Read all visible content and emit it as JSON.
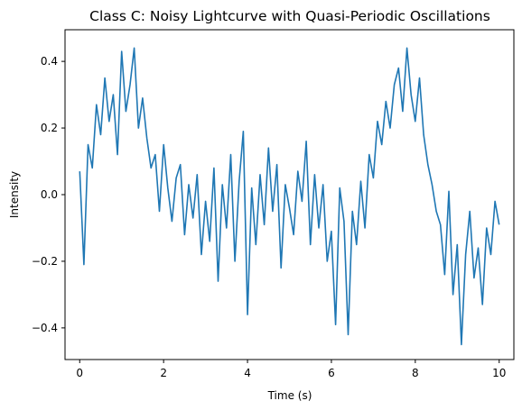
{
  "chart_data": {
    "type": "line",
    "title": "Class C: Noisy Lightcurve with Quasi-Periodic Oscillations",
    "xlabel": "Time (s)",
    "ylabel": "Intensity",
    "xlim": [
      -0.35,
      10.35
    ],
    "ylim": [
      -0.495,
      0.495
    ],
    "x_ticks": [
      0,
      2,
      4,
      6,
      8,
      10
    ],
    "x_tick_labels": [
      "0",
      "2",
      "4",
      "6",
      "8",
      "10"
    ],
    "y_ticks": [
      -0.4,
      -0.2,
      0.0,
      0.2,
      0.4
    ],
    "y_tick_labels": [
      "−0.4",
      "−0.2",
      "0.0",
      "0.2",
      "0.4"
    ],
    "grid": false,
    "legend": "none",
    "series": [
      {
        "color": "#1f77b4",
        "x": [
          0.0,
          0.1,
          0.2,
          0.3,
          0.4,
          0.5,
          0.6,
          0.7,
          0.8,
          0.9,
          1.0,
          1.1,
          1.2,
          1.3,
          1.4,
          1.5,
          1.6,
          1.7,
          1.8,
          1.9,
          2.0,
          2.1,
          2.2,
          2.3,
          2.4,
          2.5,
          2.6,
          2.7,
          2.8,
          2.9,
          3.0,
          3.1,
          3.2,
          3.3,
          3.4,
          3.5,
          3.6,
          3.7,
          3.8,
          3.9,
          4.0,
          4.1,
          4.2,
          4.3,
          4.4,
          4.5,
          4.6,
          4.7,
          4.8,
          4.9,
          5.0,
          5.1,
          5.2,
          5.3,
          5.4,
          5.5,
          5.6,
          5.7,
          5.8,
          5.9,
          6.0,
          6.1,
          6.2,
          6.3,
          6.4,
          6.5,
          6.6,
          6.7,
          6.8,
          6.9,
          7.0,
          7.1,
          7.2,
          7.3,
          7.4,
          7.5,
          7.6,
          7.7,
          7.8,
          7.9,
          8.0,
          8.1,
          8.2,
          8.3,
          8.4,
          8.5,
          8.6,
          8.7,
          8.8,
          8.9,
          9.0,
          9.1,
          9.2,
          9.3,
          9.4,
          9.5,
          9.6,
          9.7,
          9.8,
          9.9,
          10.0
        ],
        "y": [
          0.07,
          -0.21,
          0.15,
          0.08,
          0.27,
          0.18,
          0.35,
          0.22,
          0.3,
          0.12,
          0.43,
          0.25,
          0.33,
          0.44,
          0.2,
          0.29,
          0.17,
          0.08,
          0.12,
          -0.05,
          0.15,
          0.02,
          -0.08,
          0.05,
          0.09,
          -0.12,
          0.03,
          -0.07,
          0.06,
          -0.18,
          -0.02,
          -0.14,
          0.08,
          -0.26,
          0.03,
          -0.1,
          0.12,
          -0.2,
          0.04,
          0.19,
          -0.36,
          0.02,
          -0.15,
          0.06,
          -0.09,
          0.14,
          -0.05,
          0.09,
          -0.22,
          0.03,
          -0.04,
          -0.12,
          0.07,
          -0.02,
          0.16,
          -0.15,
          0.06,
          -0.1,
          0.03,
          -0.2,
          -0.11,
          -0.39,
          0.02,
          -0.08,
          -0.42,
          -0.05,
          -0.15,
          0.04,
          -0.1,
          0.12,
          0.05,
          0.22,
          0.15,
          0.28,
          0.2,
          0.33,
          0.38,
          0.25,
          0.44,
          0.3,
          0.22,
          0.35,
          0.18,
          0.09,
          0.03,
          -0.05,
          -0.09,
          -0.24,
          0.01,
          -0.3,
          -0.15,
          -0.45,
          -0.18,
          -0.05,
          -0.25,
          -0.16,
          -0.33,
          -0.1,
          -0.18,
          -0.02,
          -0.09
        ]
      }
    ]
  }
}
